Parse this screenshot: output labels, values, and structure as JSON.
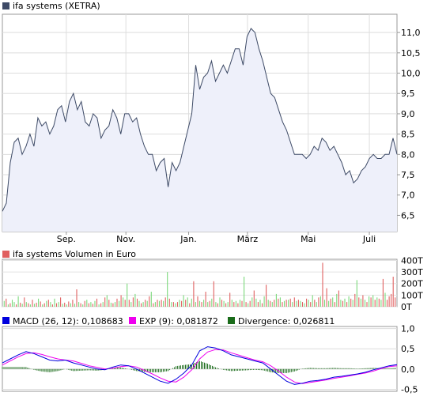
{
  "chart_data": [
    {
      "type": "area",
      "legend": "ifa systems (XETRA)",
      "color": "#3d4a66",
      "fill": "#eef0fa",
      "ylim": [
        6.1,
        11.45
      ],
      "yticks": [
        {
          "v": 6.5,
          "label": "6,5"
        },
        {
          "v": 7.0,
          "label": "7,0"
        },
        {
          "v": 7.5,
          "label": "7,5"
        },
        {
          "v": 8.0,
          "label": "8,0"
        },
        {
          "v": 8.5,
          "label": "8,5"
        },
        {
          "v": 9.0,
          "label": "9,0"
        },
        {
          "v": 9.5,
          "label": "9,5"
        },
        {
          "v": 10.0,
          "label": "10,0"
        },
        {
          "v": 10.5,
          "label": "10,5"
        },
        {
          "v": 11.0,
          "label": "11,0"
        }
      ],
      "xticks": [
        {
          "t": 0.162,
          "label": "Sep."
        },
        {
          "t": 0.313,
          "label": "Nov."
        },
        {
          "t": 0.472,
          "label": "Jan."
        },
        {
          "t": 0.621,
          "label": "März"
        },
        {
          "t": 0.775,
          "label": "Mai"
        },
        {
          "t": 0.93,
          "label": "Juli"
        }
      ],
      "x": [
        0,
        0.01,
        0.02,
        0.03,
        0.04,
        0.05,
        0.06,
        0.07,
        0.08,
        0.09,
        0.1,
        0.11,
        0.12,
        0.13,
        0.14,
        0.15,
        0.16,
        0.17,
        0.18,
        0.19,
        0.2,
        0.21,
        0.22,
        0.23,
        0.24,
        0.25,
        0.26,
        0.27,
        0.28,
        0.29,
        0.3,
        0.31,
        0.32,
        0.33,
        0.34,
        0.35,
        0.36,
        0.37,
        0.38,
        0.39,
        0.4,
        0.41,
        0.42,
        0.43,
        0.44,
        0.45,
        0.46,
        0.47,
        0.48,
        0.49,
        0.5,
        0.51,
        0.52,
        0.53,
        0.54,
        0.55,
        0.56,
        0.57,
        0.58,
        0.59,
        0.6,
        0.61,
        0.62,
        0.63,
        0.64,
        0.65,
        0.66,
        0.67,
        0.68,
        0.69,
        0.7,
        0.71,
        0.72,
        0.73,
        0.74,
        0.75,
        0.76,
        0.77,
        0.78,
        0.79,
        0.8,
        0.81,
        0.82,
        0.83,
        0.84,
        0.85,
        0.86,
        0.87,
        0.88,
        0.89,
        0.9,
        0.91,
        0.92,
        0.93,
        0.94,
        0.95,
        0.96,
        0.97,
        0.98,
        0.99,
        1.0
      ],
      "values": [
        6.6,
        6.8,
        7.8,
        8.3,
        8.4,
        8.0,
        8.2,
        8.5,
        8.2,
        8.9,
        8.7,
        8.8,
        8.5,
        8.7,
        9.1,
        9.2,
        8.8,
        9.3,
        9.5,
        9.1,
        9.3,
        8.8,
        8.7,
        9.0,
        8.9,
        8.4,
        8.6,
        8.7,
        9.1,
        8.9,
        8.5,
        9.0,
        9.0,
        8.8,
        8.9,
        8.5,
        8.2,
        8.0,
        8.0,
        7.6,
        7.8,
        7.9,
        7.2,
        7.8,
        7.6,
        7.8,
        8.2,
        8.6,
        9.0,
        10.2,
        9.6,
        9.9,
        10.0,
        10.3,
        9.8,
        10.0,
        10.2,
        10.0,
        10.3,
        10.6,
        10.6,
        10.2,
        10.9,
        11.1,
        11.0,
        10.6,
        10.3,
        9.9,
        9.5,
        9.4,
        9.1,
        8.8,
        8.6,
        8.3,
        8.0,
        8.0,
        8.0,
        7.9,
        8.0,
        8.2,
        8.1,
        8.4,
        8.3,
        8.1,
        8.2,
        8.0,
        7.8,
        7.5,
        7.6,
        7.3,
        7.4,
        7.6,
        7.7,
        7.9,
        8.0,
        7.9,
        7.9,
        8.0,
        8.0,
        8.4,
        8.0
      ]
    },
    {
      "type": "bar",
      "legend": "ifa systems Volumen in Euro",
      "up_color": "#7bd97b",
      "down_color": "#e06060",
      "ylim": [
        0,
        410
      ],
      "yticks": [
        {
          "v": 0,
          "label": "0T"
        },
        {
          "v": 100,
          "label": "100T"
        },
        {
          "v": 200,
          "label": "200T"
        },
        {
          "v": 300,
          "label": "300T"
        },
        {
          "v": 400,
          "label": "400T"
        }
      ],
      "values": [
        50,
        70,
        20,
        30,
        60,
        40,
        20,
        90,
        35,
        25,
        80,
        40,
        30,
        20,
        60,
        25,
        35,
        70,
        45,
        20,
        30,
        50,
        60,
        40,
        20,
        70,
        30,
        40,
        80,
        25,
        35,
        20,
        45,
        30,
        60,
        25,
        150,
        40,
        30,
        20,
        50,
        60,
        30,
        40,
        25,
        50,
        70,
        20,
        30,
        40,
        80,
        100,
        60,
        35,
        30,
        40,
        70,
        50,
        100,
        80,
        60,
        200,
        60,
        40,
        80,
        110,
        70,
        50,
        30,
        40,
        60,
        50,
        90,
        130,
        30,
        40,
        60,
        50,
        60,
        50,
        80,
        300,
        70,
        40,
        40,
        30,
        40,
        60,
        50,
        100,
        60,
        80,
        30,
        70,
        220,
        40,
        90,
        50,
        40,
        60,
        130,
        40,
        50,
        70,
        220,
        40,
        30,
        80,
        60,
        50,
        30,
        40,
        120,
        60,
        40,
        50,
        30,
        60,
        50,
        260,
        40,
        30,
        50,
        80,
        140,
        70,
        40,
        60,
        30,
        90,
        190,
        60,
        50,
        40,
        60,
        110,
        70,
        80,
        40,
        50,
        60,
        60,
        70,
        40,
        80,
        50,
        60,
        50,
        40,
        30,
        70,
        60,
        40,
        100,
        60,
        40,
        80,
        90,
        380,
        60,
        160,
        50,
        70,
        80,
        40,
        110,
        140,
        60,
        50,
        70,
        40,
        90,
        70,
        60,
        110,
        230,
        80,
        70,
        100,
        60,
        40,
        90,
        80,
        100,
        60,
        80,
        70,
        60,
        240,
        120,
        60,
        90,
        110,
        260,
        80
      ],
      "up": [
        true,
        false,
        true,
        false,
        true,
        true,
        false,
        true,
        false,
        true,
        false,
        true,
        false,
        true,
        false,
        true,
        false,
        true,
        false,
        true,
        false,
        true,
        false,
        true,
        false,
        true,
        false,
        true,
        false,
        true,
        false,
        true,
        false,
        true,
        false,
        true,
        false,
        true,
        false,
        true,
        false,
        true,
        false,
        true,
        false,
        true,
        false,
        true,
        false,
        true,
        false,
        true,
        false,
        true,
        false,
        true,
        false,
        true,
        false,
        true,
        false,
        true,
        false,
        true,
        false,
        true,
        false,
        true,
        false,
        true,
        false,
        true,
        false,
        true,
        false,
        true,
        false,
        true,
        false,
        true,
        false,
        true,
        false,
        true,
        false,
        true,
        false,
        true,
        false,
        true,
        false,
        true,
        false,
        true,
        false,
        true,
        false,
        true,
        false,
        true,
        false,
        true,
        false,
        true,
        false,
        true,
        false,
        true,
        false,
        true,
        false,
        true,
        false,
        true,
        false,
        true,
        false,
        true,
        false,
        true,
        false,
        true,
        false,
        true,
        false,
        true,
        false,
        true,
        false,
        true,
        false,
        true,
        false,
        true,
        false,
        true,
        false,
        true,
        false,
        true,
        false,
        true,
        false,
        true,
        false,
        true,
        false,
        true,
        false,
        true,
        false,
        true,
        false,
        true,
        false,
        true,
        false,
        true,
        false,
        true,
        false,
        true,
        false,
        true,
        false,
        true,
        false,
        true,
        false,
        true,
        false,
        true,
        false,
        true,
        false,
        true,
        false,
        true,
        false,
        true,
        false,
        true,
        false,
        true,
        false,
        true,
        false,
        true,
        false,
        true
      ]
    },
    {
      "type": "line",
      "legend": [
        {
          "label": "MACD (26, 12): 0,108683",
          "color": "#0000dd"
        },
        {
          "label": "EXP (9): 0,081872",
          "color": "#ee00ee"
        },
        {
          "label": "Divergence: 0,026811",
          "color": "#1a6b1a"
        }
      ],
      "ylim": [
        -0.55,
        1.05
      ],
      "yticks": [
        {
          "v": -0.5,
          "label": "-0,5"
        },
        {
          "v": 0.0,
          "label": "0,0"
        },
        {
          "v": 0.5,
          "label": "0,5"
        },
        {
          "v": 1.0,
          "label": "1,0"
        }
      ],
      "x": [
        0,
        0.02,
        0.04,
        0.06,
        0.08,
        0.1,
        0.12,
        0.14,
        0.16,
        0.18,
        0.2,
        0.22,
        0.24,
        0.26,
        0.28,
        0.3,
        0.32,
        0.34,
        0.36,
        0.38,
        0.4,
        0.42,
        0.44,
        0.46,
        0.48,
        0.5,
        0.52,
        0.54,
        0.56,
        0.58,
        0.6,
        0.62,
        0.64,
        0.66,
        0.68,
        0.7,
        0.72,
        0.74,
        0.76,
        0.78,
        0.8,
        0.82,
        0.84,
        0.86,
        0.88,
        0.9,
        0.92,
        0.94,
        0.96,
        0.98,
        1.0
      ],
      "series": [
        {
          "name": "MACD",
          "color": "#0000dd",
          "values": [
            0.15,
            0.25,
            0.35,
            0.43,
            0.38,
            0.3,
            0.22,
            0.2,
            0.22,
            0.15,
            0.1,
            0.05,
            0.0,
            -0.02,
            0.05,
            0.1,
            0.08,
            0.0,
            -0.1,
            -0.2,
            -0.3,
            -0.35,
            -0.25,
            -0.1,
            0.1,
            0.45,
            0.55,
            0.52,
            0.45,
            0.35,
            0.3,
            0.25,
            0.2,
            0.15,
            0.0,
            -0.15,
            -0.3,
            -0.38,
            -0.35,
            -0.3,
            -0.28,
            -0.25,
            -0.2,
            -0.18,
            -0.15,
            -0.12,
            -0.08,
            -0.02,
            0.03,
            0.08,
            0.11
          ]
        },
        {
          "name": "EXP",
          "color": "#ee00ee",
          "values": [
            0.1,
            0.2,
            0.3,
            0.38,
            0.4,
            0.36,
            0.3,
            0.25,
            0.22,
            0.2,
            0.14,
            0.08,
            0.04,
            0.0,
            0.02,
            0.06,
            0.08,
            0.05,
            -0.03,
            -0.12,
            -0.22,
            -0.3,
            -0.32,
            -0.2,
            -0.02,
            0.25,
            0.42,
            0.48,
            0.47,
            0.4,
            0.34,
            0.28,
            0.22,
            0.18,
            0.08,
            -0.05,
            -0.2,
            -0.32,
            -0.36,
            -0.33,
            -0.3,
            -0.27,
            -0.23,
            -0.2,
            -0.17,
            -0.13,
            -0.1,
            -0.05,
            0.01,
            0.06,
            0.08
          ]
        },
        {
          "name": "Divergence",
          "color": "#1a6b1a",
          "values": [
            0.05,
            0.05,
            0.05,
            0.05,
            -0.02,
            -0.06,
            -0.08,
            -0.05,
            0.0,
            -0.05,
            -0.04,
            -0.03,
            -0.04,
            -0.02,
            0.03,
            0.04,
            0.0,
            -0.05,
            -0.07,
            -0.08,
            -0.08,
            -0.05,
            0.07,
            0.1,
            0.12,
            0.2,
            0.13,
            0.04,
            -0.02,
            -0.05,
            -0.04,
            -0.03,
            -0.02,
            -0.03,
            -0.08,
            -0.1,
            -0.1,
            -0.06,
            0.01,
            0.03,
            0.02,
            0.02,
            0.03,
            0.02,
            0.02,
            0.01,
            0.02,
            0.03,
            0.02,
            0.02,
            0.03
          ]
        }
      ]
    }
  ]
}
